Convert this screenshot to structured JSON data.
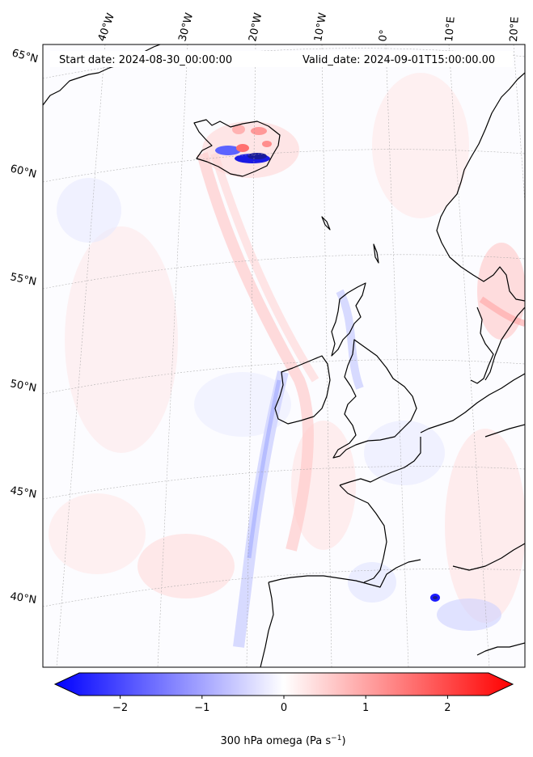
{
  "figure": {
    "start_date": "Start date: 2024-08-30_00:00:00",
    "valid_date": "Valid_date: 2024-09-01T15:00:00.00"
  },
  "map": {
    "lon_labels": [
      "40°W",
      "30°W",
      "20°W",
      "10°W",
      "0°",
      "10°E",
      "20°E"
    ],
    "lat_labels": [
      "65°N",
      "60°N",
      "55°N",
      "50°N",
      "45°N",
      "40°N"
    ],
    "colors": {
      "negative": "#0000ff",
      "neutral": "#ffffff",
      "positive": "#ff0000",
      "coast": "#000000"
    }
  },
  "colorbar": {
    "ticks": [
      "−2",
      "−1",
      "0",
      "1",
      "2"
    ],
    "tick_values": [
      -2,
      -1,
      0,
      1,
      2
    ],
    "range": [
      -2.5,
      2.5
    ],
    "label_main": "300 hPa omega (Pa s",
    "label_sup": "−1",
    "label_end": ")"
  }
}
